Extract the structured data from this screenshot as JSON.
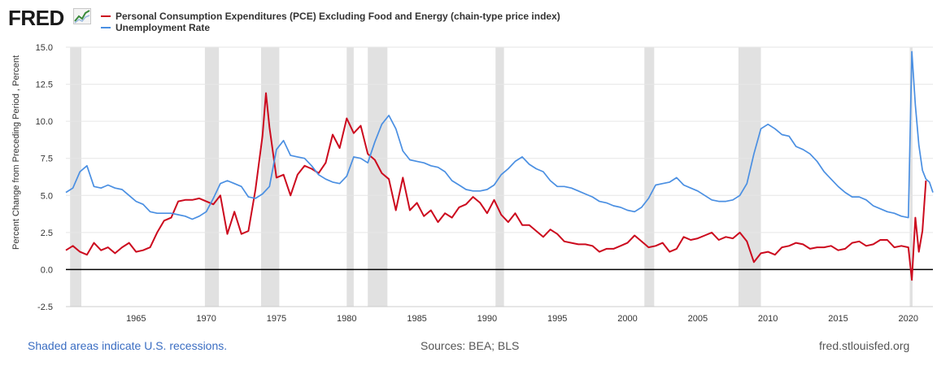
{
  "branding": {
    "logo_text": "FRED"
  },
  "footer": {
    "recessions_note": "Shaded areas indicate U.S. recessions.",
    "sources": "Sources: BEA; BLS",
    "url": "fred.stlouisfed.org"
  },
  "colors": {
    "pce": "#cc0a1e",
    "unrate": "#4a8fe2",
    "recession": "#e1e1e1",
    "zero_line": "#000000"
  },
  "chart_data": {
    "type": "line",
    "title": "",
    "ylabel": "Percent Change from Preceding Period , Percent",
    "xlabel": "",
    "xlim": [
      1960.0,
      2021.75
    ],
    "ylim": [
      -2.5,
      15.0
    ],
    "yticks": [
      -2.5,
      0.0,
      2.5,
      5.0,
      7.5,
      10.0,
      12.5,
      15.0
    ],
    "ytick_labels": [
      "-2.5",
      "0.0",
      "2.5",
      "5.0",
      "7.5",
      "10.0",
      "12.5",
      "15.0"
    ],
    "xticks": [
      1965,
      1970,
      1975,
      1980,
      1985,
      1990,
      1995,
      2000,
      2005,
      2010,
      2015,
      2020
    ],
    "xtick_labels": [
      "1965",
      "1970",
      "1975",
      "1980",
      "1985",
      "1990",
      "1995",
      "2000",
      "2005",
      "2010",
      "2015",
      "2020"
    ],
    "zero_line": true,
    "recessions": [
      [
        1960.3,
        1961.1
      ],
      [
        1969.9,
        1970.9
      ],
      [
        1973.9,
        1975.2
      ],
      [
        1980.0,
        1980.5
      ],
      [
        1981.5,
        1982.9
      ],
      [
        1990.6,
        1991.2
      ],
      [
        2001.2,
        2001.9
      ],
      [
        2007.9,
        2009.5
      ],
      [
        2020.1,
        2020.3
      ]
    ],
    "series": [
      {
        "name": "Personal Consumption Expenditures (PCE) Excluding Food and Energy (chain-type price index)",
        "color": "#cc0a1e",
        "x": [
          1960.0,
          1960.5,
          1961.0,
          1961.5,
          1962.0,
          1962.5,
          1963.0,
          1963.5,
          1964.0,
          1964.5,
          1965.0,
          1965.5,
          1966.0,
          1966.5,
          1967.0,
          1967.5,
          1968.0,
          1968.5,
          1969.0,
          1969.5,
          1970.0,
          1970.5,
          1971.0,
          1971.5,
          1972.0,
          1972.5,
          1973.0,
          1973.5,
          1974.0,
          1974.25,
          1974.5,
          1975.0,
          1975.5,
          1976.0,
          1976.5,
          1977.0,
          1977.5,
          1978.0,
          1978.5,
          1979.0,
          1979.5,
          1980.0,
          1980.5,
          1981.0,
          1981.5,
          1982.0,
          1982.5,
          1983.0,
          1983.5,
          1984.0,
          1984.5,
          1985.0,
          1985.5,
          1986.0,
          1986.5,
          1987.0,
          1987.5,
          1988.0,
          1988.5,
          1989.0,
          1989.5,
          1990.0,
          1990.5,
          1991.0,
          1991.5,
          1992.0,
          1992.5,
          1993.0,
          1993.5,
          1994.0,
          1994.5,
          1995.0,
          1995.5,
          1996.0,
          1996.5,
          1997.0,
          1997.5,
          1998.0,
          1998.5,
          1999.0,
          1999.5,
          2000.0,
          2000.5,
          2001.0,
          2001.5,
          2002.0,
          2002.5,
          2003.0,
          2003.5,
          2004.0,
          2004.5,
          2005.0,
          2005.5,
          2006.0,
          2006.5,
          2007.0,
          2007.5,
          2008.0,
          2008.5,
          2009.0,
          2009.5,
          2010.0,
          2010.5,
          2011.0,
          2011.5,
          2012.0,
          2012.5,
          2013.0,
          2013.5,
          2014.0,
          2014.5,
          2015.0,
          2015.5,
          2016.0,
          2016.5,
          2017.0,
          2017.5,
          2018.0,
          2018.5,
          2019.0,
          2019.5,
          2020.0,
          2020.25,
          2020.5,
          2020.75,
          2021.0,
          2021.25
        ],
        "values": [
          1.3,
          1.6,
          1.2,
          1.0,
          1.8,
          1.3,
          1.5,
          1.1,
          1.5,
          1.8,
          1.2,
          1.3,
          1.5,
          2.5,
          3.3,
          3.5,
          4.6,
          4.7,
          4.7,
          4.8,
          4.6,
          4.4,
          5.0,
          2.4,
          3.9,
          2.4,
          2.6,
          5.4,
          9.0,
          11.9,
          9.6,
          6.2,
          6.4,
          5.0,
          6.4,
          7.0,
          6.8,
          6.5,
          7.2,
          9.1,
          8.2,
          10.2,
          9.2,
          9.7,
          7.8,
          7.4,
          6.5,
          6.1,
          4.0,
          6.2,
          4.0,
          4.5,
          3.6,
          4.0,
          3.2,
          3.8,
          3.5,
          4.2,
          4.4,
          4.9,
          4.5,
          3.8,
          4.7,
          3.7,
          3.2,
          3.8,
          3.0,
          3.0,
          2.6,
          2.2,
          2.7,
          2.4,
          1.9,
          1.8,
          1.7,
          1.7,
          1.6,
          1.2,
          1.4,
          1.4,
          1.6,
          1.8,
          2.3,
          1.9,
          1.5,
          1.6,
          1.8,
          1.2,
          1.4,
          2.2,
          2.0,
          2.1,
          2.3,
          2.5,
          2.0,
          2.2,
          2.1,
          2.5,
          1.9,
          0.5,
          1.1,
          1.2,
          1.0,
          1.5,
          1.6,
          1.8,
          1.7,
          1.4,
          1.5,
          1.5,
          1.6,
          1.3,
          1.4,
          1.8,
          1.9,
          1.6,
          1.7,
          2.0,
          2.0,
          1.5,
          1.6,
          1.5,
          -0.7,
          3.5,
          1.2,
          2.6,
          6.0
        ]
      },
      {
        "name": "Unemployment Rate",
        "color": "#4a8fe2",
        "x": [
          1960.0,
          1960.5,
          1961.0,
          1961.5,
          1962.0,
          1962.5,
          1963.0,
          1963.5,
          1964.0,
          1964.5,
          1965.0,
          1965.5,
          1966.0,
          1966.5,
          1967.0,
          1967.5,
          1968.0,
          1968.5,
          1969.0,
          1969.5,
          1970.0,
          1970.5,
          1971.0,
          1971.5,
          1972.0,
          1972.5,
          1973.0,
          1973.5,
          1974.0,
          1974.5,
          1975.0,
          1975.5,
          1976.0,
          1976.5,
          1977.0,
          1977.5,
          1978.0,
          1978.5,
          1979.0,
          1979.5,
          1980.0,
          1980.5,
          1981.0,
          1981.5,
          1982.0,
          1982.5,
          1983.0,
          1983.5,
          1984.0,
          1984.5,
          1985.0,
          1985.5,
          1986.0,
          1986.5,
          1987.0,
          1987.5,
          1988.0,
          1988.5,
          1989.0,
          1989.5,
          1990.0,
          1990.5,
          1991.0,
          1991.5,
          1992.0,
          1992.5,
          1993.0,
          1993.5,
          1994.0,
          1994.5,
          1995.0,
          1995.5,
          1996.0,
          1996.5,
          1997.0,
          1997.5,
          1998.0,
          1998.5,
          1999.0,
          1999.5,
          2000.0,
          2000.5,
          2001.0,
          2001.5,
          2002.0,
          2002.5,
          2003.0,
          2003.5,
          2004.0,
          2004.5,
          2005.0,
          2005.5,
          2006.0,
          2006.5,
          2007.0,
          2007.5,
          2008.0,
          2008.5,
          2009.0,
          2009.5,
          2010.0,
          2010.5,
          2011.0,
          2011.5,
          2012.0,
          2012.5,
          2013.0,
          2013.5,
          2014.0,
          2014.5,
          2015.0,
          2015.5,
          2016.0,
          2016.5,
          2017.0,
          2017.5,
          2018.0,
          2018.5,
          2019.0,
          2019.5,
          2020.0,
          2020.25,
          2020.5,
          2020.75,
          2021.0,
          2021.25,
          2021.5,
          2021.75
        ],
        "values": [
          5.2,
          5.5,
          6.6,
          7.0,
          5.6,
          5.5,
          5.7,
          5.5,
          5.4,
          5.0,
          4.6,
          4.4,
          3.9,
          3.8,
          3.8,
          3.8,
          3.7,
          3.6,
          3.4,
          3.6,
          3.9,
          4.8,
          5.8,
          6.0,
          5.8,
          5.6,
          4.9,
          4.8,
          5.1,
          5.6,
          8.1,
          8.7,
          7.7,
          7.6,
          7.5,
          7.0,
          6.4,
          6.1,
          5.9,
          5.8,
          6.3,
          7.6,
          7.5,
          7.2,
          8.6,
          9.8,
          10.4,
          9.5,
          8.0,
          7.4,
          7.3,
          7.2,
          7.0,
          6.9,
          6.6,
          6.0,
          5.7,
          5.4,
          5.3,
          5.3,
          5.4,
          5.7,
          6.4,
          6.8,
          7.3,
          7.6,
          7.1,
          6.8,
          6.6,
          6.0,
          5.6,
          5.6,
          5.5,
          5.3,
          5.1,
          4.9,
          4.6,
          4.5,
          4.3,
          4.2,
          4.0,
          3.9,
          4.2,
          4.8,
          5.7,
          5.8,
          5.9,
          6.2,
          5.7,
          5.5,
          5.3,
          5.0,
          4.7,
          4.6,
          4.6,
          4.7,
          5.0,
          5.8,
          7.8,
          9.5,
          9.8,
          9.5,
          9.1,
          9.0,
          8.3,
          8.1,
          7.8,
          7.3,
          6.6,
          6.1,
          5.6,
          5.2,
          4.9,
          4.9,
          4.7,
          4.3,
          4.1,
          3.9,
          3.8,
          3.6,
          3.5,
          14.7,
          11.1,
          8.4,
          6.7,
          6.1,
          5.9,
          5.2
        ]
      }
    ]
  }
}
